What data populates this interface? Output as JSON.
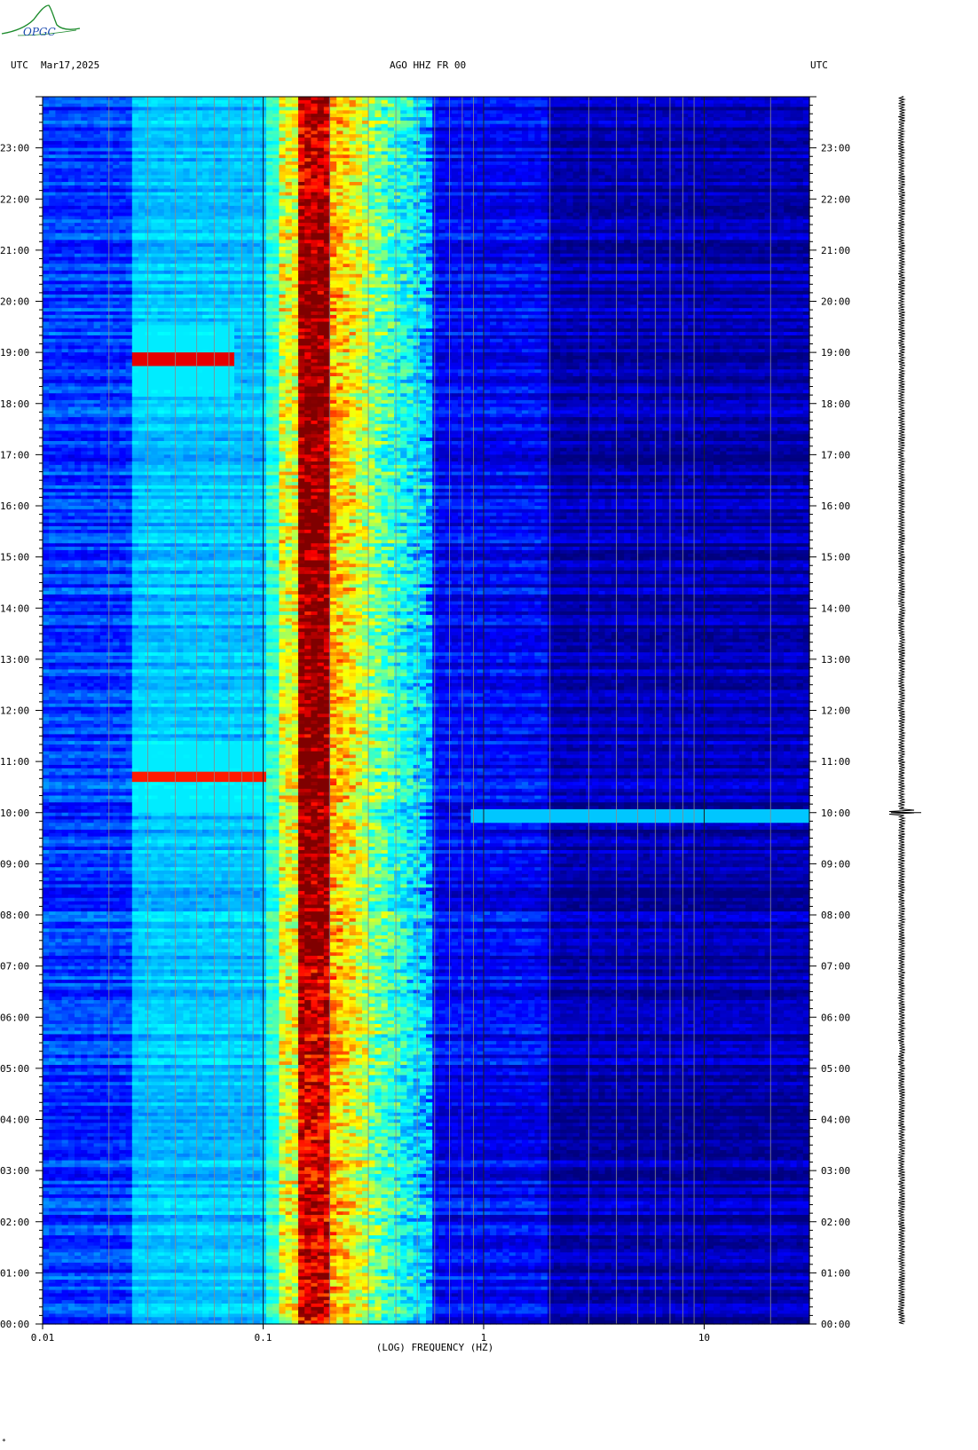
{
  "header": {
    "left_tz": "UTC",
    "date": "Mar17,2025",
    "station": "AGO HHZ FR 00",
    "right_tz": "UTC"
  },
  "logo": {
    "text": "OPGC",
    "accent": "#1a8a2a"
  },
  "footmark": "*",
  "chart_data": {
    "type": "heatmap",
    "title": "AGO HHZ FR 00",
    "xlabel": "(LOG) FREQUENCY (HZ)",
    "ylabel": "",
    "x_scale": "log",
    "xlim": [
      0.01,
      30
    ],
    "ylim_hours": [
      0,
      24
    ],
    "x_tick_values": [
      0.01,
      0.1,
      1,
      10
    ],
    "x_tick_labels": [
      "0.01",
      "0.1",
      "1",
      "10"
    ],
    "y_tick_hours": [
      0,
      1,
      2,
      3,
      4,
      5,
      6,
      7,
      8,
      9,
      10,
      11,
      12,
      13,
      14,
      15,
      16,
      17,
      18,
      19,
      20,
      21,
      22,
      23
    ],
    "y_tick_labels": [
      "00:00",
      "01:00",
      "02:00",
      "03:00",
      "04:00",
      "05:00",
      "06:00",
      "07:00",
      "08:00",
      "09:00",
      "10:00",
      "11:00",
      "12:00",
      "13:00",
      "14:00",
      "15:00",
      "16:00",
      "17:00",
      "18:00",
      "19:00",
      "20:00",
      "21:00",
      "22:00",
      "23:00"
    ],
    "colormap": [
      "#00007f",
      "#0000ff",
      "#00a0ff",
      "#00ffff",
      "#80ff80",
      "#ffff00",
      "#ff8000",
      "#ff0000",
      "#800000"
    ],
    "microseism_peak_hz": [
      0.14,
      0.2
    ],
    "events": [
      {
        "hour": 18.85,
        "fmin": 0.025,
        "fmax": 0.075,
        "level": 0.9
      },
      {
        "hour": 10.7,
        "fmin": 0.025,
        "fmax": 0.1,
        "level": 0.85
      },
      {
        "hour": 9.95,
        "fmin": 0.9,
        "fmax": 30,
        "level": 0.3
      }
    ],
    "trace_event_hour": 10.0
  }
}
